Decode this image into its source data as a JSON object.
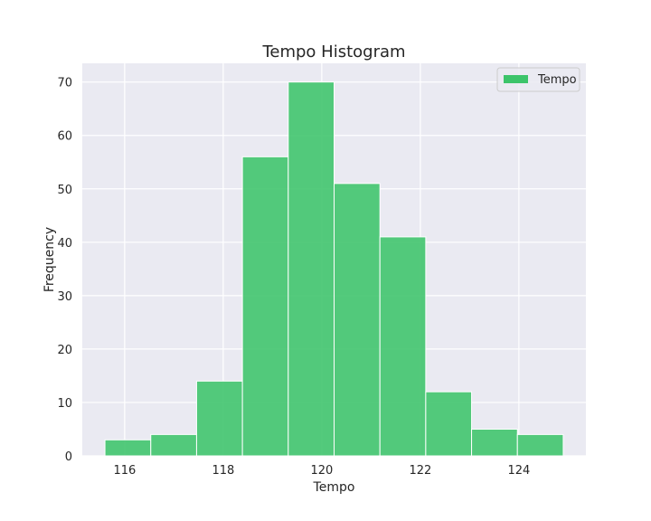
{
  "chart_data": {
    "type": "bar",
    "title": "Tempo Histogram",
    "xlabel": "Tempo",
    "ylabel": "Frequency",
    "bins": [
      {
        "start": 115.6,
        "end": 116.53,
        "count": 3
      },
      {
        "start": 116.53,
        "end": 117.46,
        "count": 4
      },
      {
        "start": 117.46,
        "end": 118.39,
        "count": 14
      },
      {
        "start": 118.39,
        "end": 119.32,
        "count": 56
      },
      {
        "start": 119.32,
        "end": 120.25,
        "count": 70
      },
      {
        "start": 120.25,
        "end": 121.18,
        "count": 51
      },
      {
        "start": 121.18,
        "end": 122.11,
        "count": 41
      },
      {
        "start": 122.11,
        "end": 123.04,
        "count": 12
      },
      {
        "start": 123.04,
        "end": 123.97,
        "count": 5
      },
      {
        "start": 123.97,
        "end": 124.9,
        "count": 4
      }
    ],
    "x_ticks": [
      116,
      118,
      120,
      122,
      124
    ],
    "y_ticks": [
      0,
      10,
      20,
      30,
      40,
      50,
      60,
      70
    ],
    "xlim": [
      115.14,
      125.36
    ],
    "ylim": [
      0,
      73.5
    ],
    "series_name": "Tempo",
    "color": "#3cc46a",
    "grid": true,
    "legend_position": "top-right"
  }
}
